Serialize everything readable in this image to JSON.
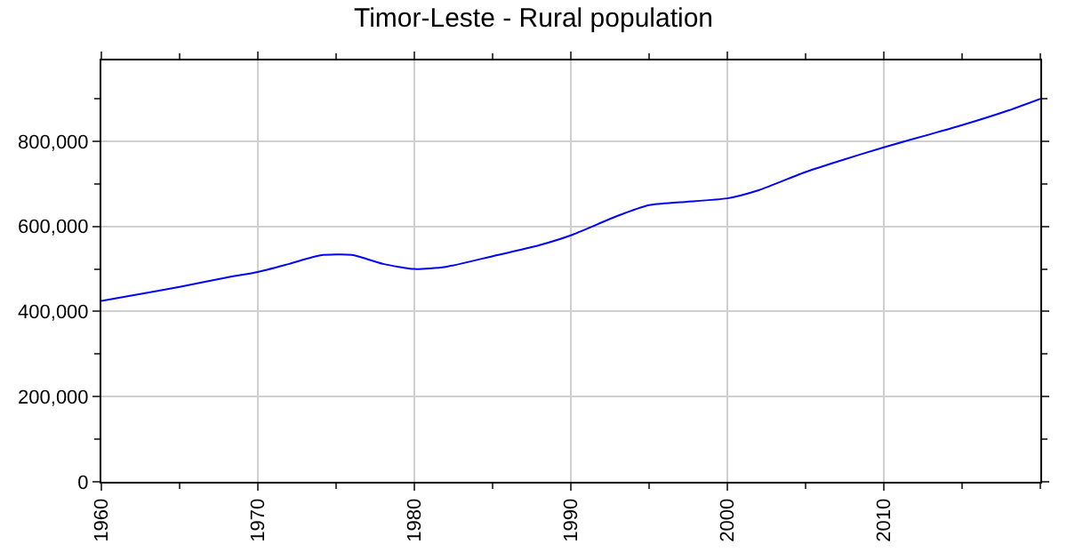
{
  "chart_data": {
    "type": "line",
    "title": "Timor-Leste - Rural population",
    "x": [
      1960,
      1962,
      1965,
      1968,
      1970,
      1972,
      1974,
      1976,
      1978,
      1980,
      1982,
      1985,
      1988,
      1990,
      1993,
      1995,
      1997,
      2000,
      2002,
      2005,
      2007,
      2010,
      2013,
      2015,
      2018,
      2020
    ],
    "series": [
      {
        "color": "#0000ff",
        "values": [
          425000,
          438000,
          458000,
          480000,
          493000,
          512000,
          532000,
          533000,
          512000,
          500000,
          505000,
          530000,
          556000,
          579000,
          625000,
          650000,
          657000,
          666000,
          685000,
          728000,
          752000,
          786000,
          817000,
          838000,
          873000,
          900000
        ]
      }
    ],
    "xlim": [
      1960,
      2020
    ],
    "ylim": [
      0,
      990000
    ],
    "xticks": [
      1960,
      1970,
      1980,
      1990,
      2000,
      2010
    ],
    "yticks": [
      {
        "value": 0,
        "label": "0"
      },
      {
        "value": 200000,
        "label": "200,000"
      },
      {
        "value": 400000,
        "label": "400,000"
      },
      {
        "value": 600000,
        "label": "600,000"
      },
      {
        "value": 800000,
        "label": "800,000"
      }
    ],
    "grid": true,
    "marker": "none",
    "line_style": "solid"
  }
}
